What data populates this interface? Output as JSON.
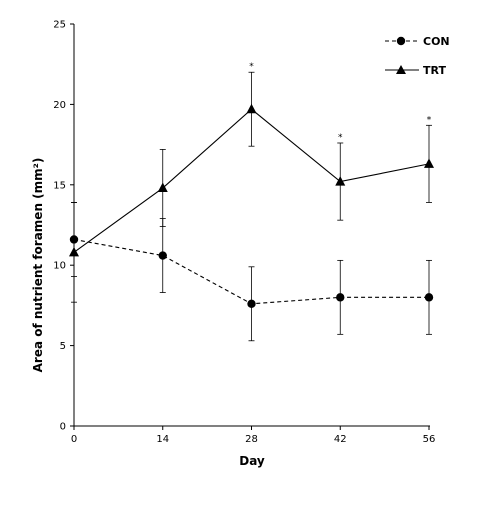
{
  "chart_data": {
    "type": "line",
    "title": "",
    "xlabel": "Day",
    "ylabel": "Area of nutrient foramen (mm²)",
    "x": [
      0,
      14,
      28,
      42,
      56
    ],
    "x_ticks": [
      "0",
      "14",
      "28",
      "42",
      "56"
    ],
    "y_ticks": [
      "0",
      "5",
      "10",
      "15",
      "20",
      "25"
    ],
    "ylim": [
      0,
      25
    ],
    "grid": false,
    "legend_position": "top-right",
    "series": [
      {
        "name": "CON",
        "marker": "circle",
        "line_style": "dashed",
        "values": [
          11.6,
          10.6,
          7.6,
          8.0,
          8.0
        ],
        "error": [
          2.3,
          2.3,
          2.3,
          2.3,
          2.3
        ]
      },
      {
        "name": "TRT",
        "marker": "triangle",
        "line_style": "solid",
        "values": [
          10.8,
          14.8,
          19.7,
          15.2,
          16.3
        ],
        "error": [
          3.1,
          2.4,
          2.3,
          2.4,
          2.4
        ]
      }
    ],
    "annotations": [
      {
        "x": 28,
        "text": "*"
      },
      {
        "x": 42,
        "text": "*"
      },
      {
        "x": 56,
        "text": "*"
      }
    ],
    "colors": {
      "line": "#000000",
      "background": "#ffffff"
    }
  }
}
